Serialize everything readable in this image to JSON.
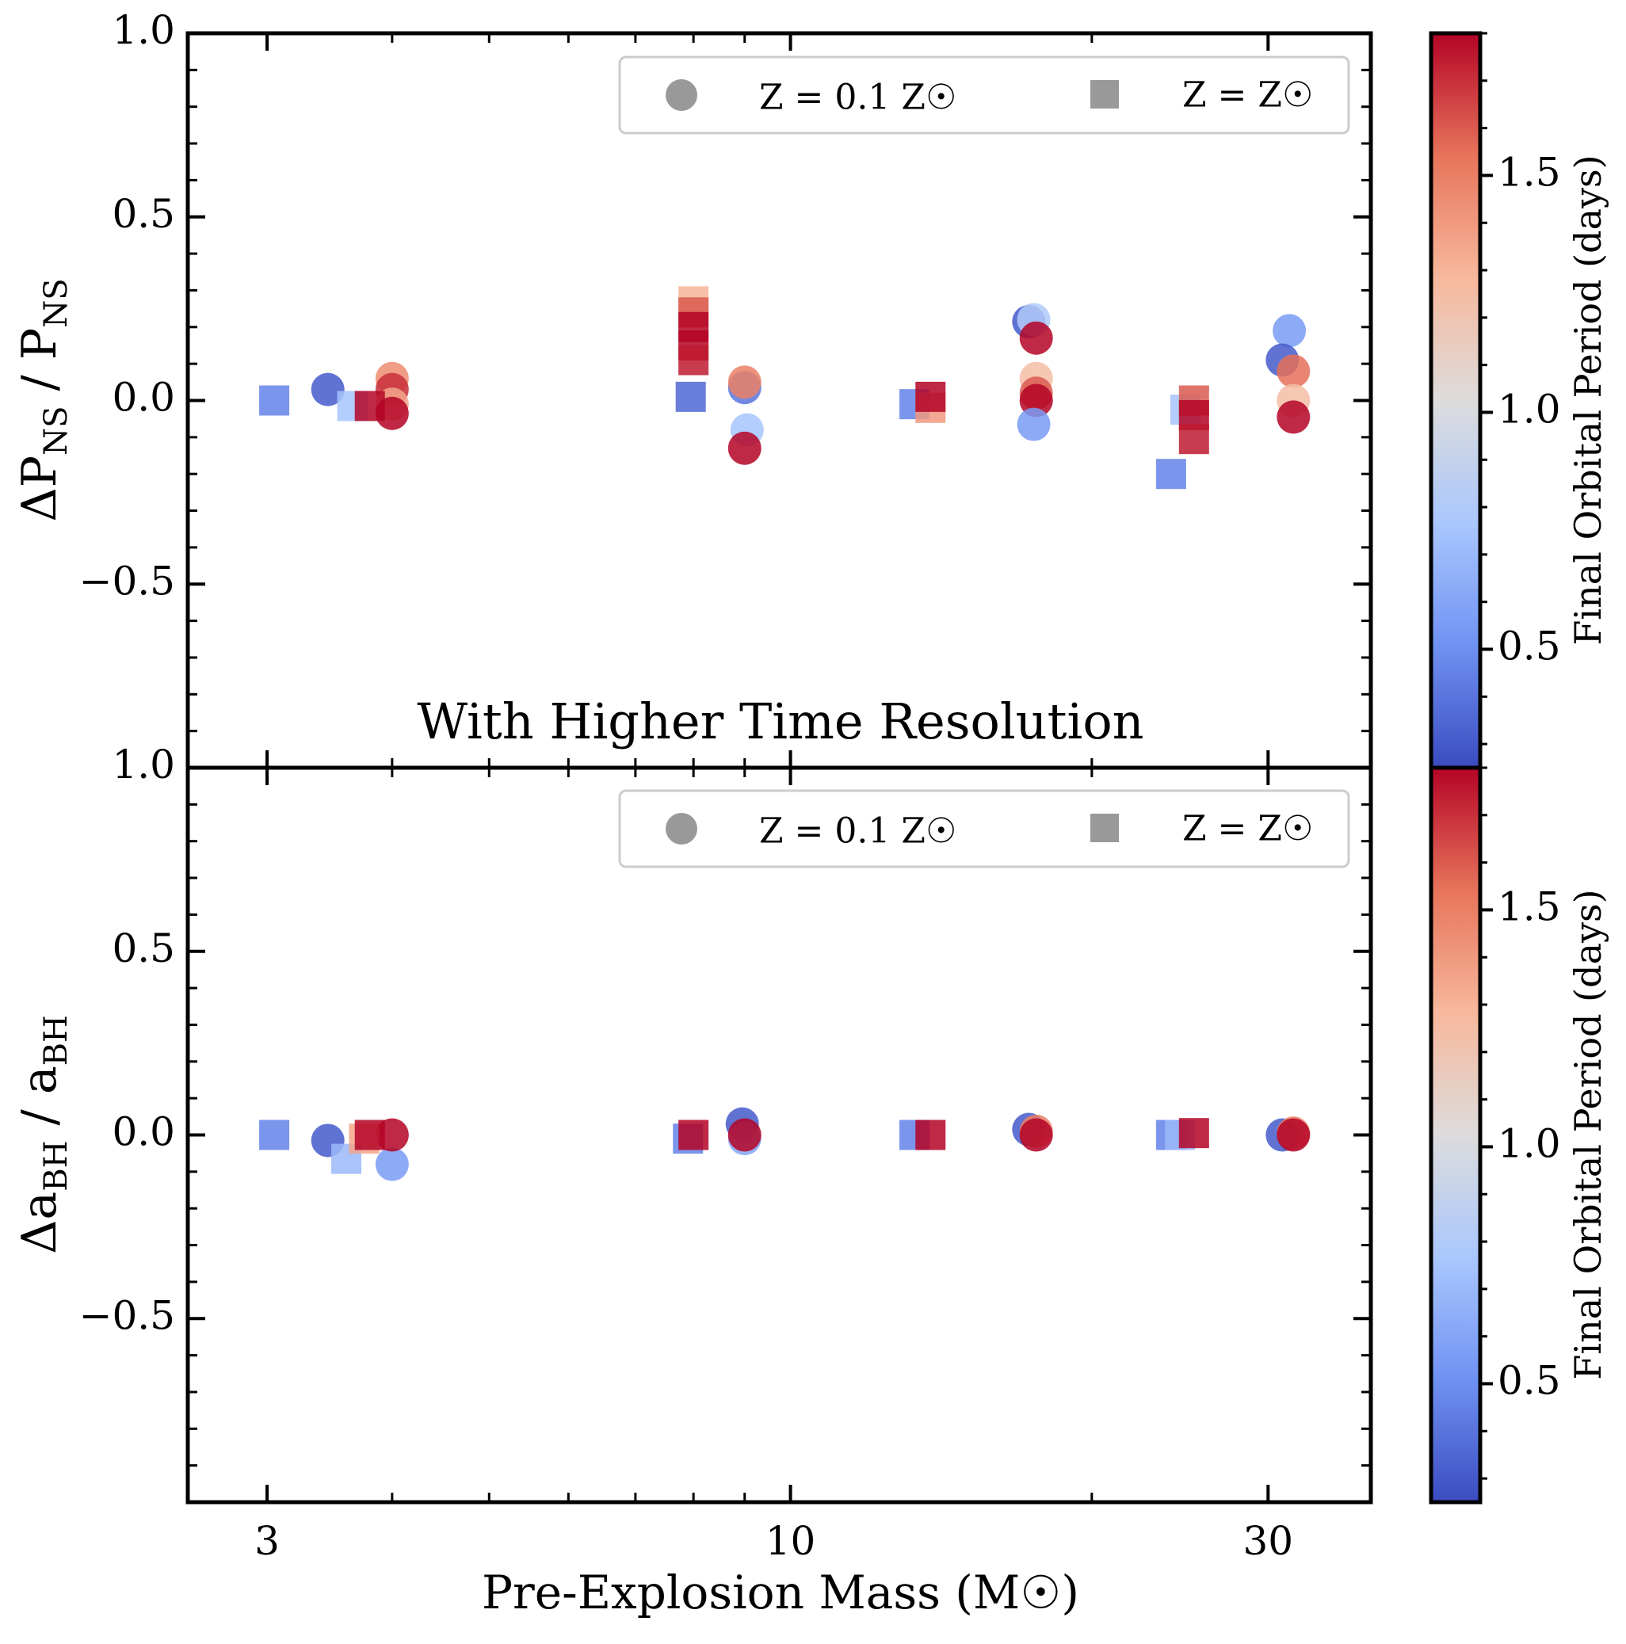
{
  "chart_data": [
    {
      "type": "scatter",
      "panel": "top",
      "ylabel_main": "ΔP",
      "ylabel_sub": "NS",
      "ylabel_sep": " / ",
      "ylabel_main2": "P",
      "ylabel_sub2": "NS",
      "ylim": [
        -1.0,
        1.0
      ],
      "yticks": [
        -0.5,
        0.0,
        0.5,
        1.0
      ],
      "ytick_labels": [
        "−0.5",
        "0.0",
        "0.5",
        "1.0"
      ],
      "annotation": "With Higher Time Resolution",
      "legend": {
        "circle": "Z = 0.1 Z☉",
        "square": "Z = Z☉"
      },
      "series": [
        {
          "name": "Z = 0.1 Z☉",
          "marker": "circle",
          "points": [
            {
              "x": 3.45,
              "y": 0.03,
              "c": 0.3
            },
            {
              "x": 4.0,
              "y": 0.06,
              "c": 1.45
            },
            {
              "x": 4.0,
              "y": 0.03,
              "c": 1.7
            },
            {
              "x": 4.0,
              "y": -0.01,
              "c": 1.35
            },
            {
              "x": 4.0,
              "y": -0.035,
              "c": 1.8
            },
            {
              "x": 9.0,
              "y": 0.035,
              "c": 0.4
            },
            {
              "x": 9.0,
              "y": 0.05,
              "c": 1.5
            },
            {
              "x": 9.05,
              "y": -0.08,
              "c": 0.75
            },
            {
              "x": 9.0,
              "y": -0.13,
              "c": 1.8
            },
            {
              "x": 17.3,
              "y": 0.215,
              "c": 0.3
            },
            {
              "x": 17.5,
              "y": 0.22,
              "c": 0.8
            },
            {
              "x": 17.6,
              "y": 0.17,
              "c": 1.8
            },
            {
              "x": 17.6,
              "y": 0.06,
              "c": 1.25
            },
            {
              "x": 17.6,
              "y": 0.02,
              "c": 1.6
            },
            {
              "x": 17.6,
              "y": 0.0,
              "c": 1.8
            },
            {
              "x": 17.5,
              "y": -0.065,
              "c": 0.55
            },
            {
              "x": 31.5,
              "y": 0.19,
              "c": 0.55
            },
            {
              "x": 31.0,
              "y": 0.11,
              "c": 0.3
            },
            {
              "x": 31.8,
              "y": 0.08,
              "c": 1.55
            },
            {
              "x": 31.8,
              "y": 0.0,
              "c": 1.25
            },
            {
              "x": 31.8,
              "y": -0.045,
              "c": 1.8
            }
          ]
        },
        {
          "name": "Z = Z☉",
          "marker": "square",
          "points": [
            {
              "x": 3.05,
              "y": 0.0,
              "c": 0.45
            },
            {
              "x": 3.65,
              "y": -0.015,
              "c": 0.75
            },
            {
              "x": 3.8,
              "y": -0.015,
              "c": 1.8
            },
            {
              "x": 8.0,
              "y": 0.27,
              "c": 1.3
            },
            {
              "x": 8.0,
              "y": 0.24,
              "c": 1.6
            },
            {
              "x": 8.0,
              "y": 0.2,
              "c": 1.8
            },
            {
              "x": 8.0,
              "y": 0.15,
              "c": 1.8
            },
            {
              "x": 8.0,
              "y": 0.11,
              "c": 1.75
            },
            {
              "x": 7.95,
              "y": 0.01,
              "c": 0.35
            },
            {
              "x": 13.3,
              "y": -0.01,
              "c": 0.45
            },
            {
              "x": 13.8,
              "y": -0.02,
              "c": 1.4
            },
            {
              "x": 13.8,
              "y": 0.01,
              "c": 1.8
            },
            {
              "x": 24.8,
              "y": -0.025,
              "c": 0.75
            },
            {
              "x": 25.3,
              "y": 0.0,
              "c": 1.6
            },
            {
              "x": 25.3,
              "y": -0.04,
              "c": 1.8
            },
            {
              "x": 25.3,
              "y": -0.105,
              "c": 1.75
            },
            {
              "x": 24.0,
              "y": -0.2,
              "c": 0.45
            }
          ]
        }
      ]
    },
    {
      "type": "scatter",
      "panel": "bottom",
      "ylabel_main": "Δa",
      "ylabel_sub": "BH",
      "ylabel_sep": " / ",
      "ylabel_main2": "a",
      "ylabel_sub2": "BH",
      "ylim": [
        -1.0,
        1.0
      ],
      "yticks": [
        -0.5,
        0.0,
        0.5,
        1.0
      ],
      "ytick_labels": [
        "−0.5",
        "0.0",
        "0.5",
        "1.0"
      ],
      "xlabel": "Pre-Explosion Mass (M☉)",
      "xscale": "log",
      "xlim": [
        2.5,
        38
      ],
      "xticks": [
        3,
        10,
        30
      ],
      "xtick_labels": [
        "3",
        "10",
        "30"
      ],
      "legend": {
        "circle": "Z = 0.1 Z☉",
        "square": "Z = Z☉"
      },
      "series": [
        {
          "name": "Z = 0.1 Z☉",
          "marker": "circle",
          "points": [
            {
              "x": 3.45,
              "y": -0.015,
              "c": 0.3
            },
            {
              "x": 4.0,
              "y": -0.08,
              "c": 0.55
            },
            {
              "x": 4.0,
              "y": 0.0,
              "c": 1.8
            },
            {
              "x": 8.95,
              "y": 0.03,
              "c": 0.3
            },
            {
              "x": 9.0,
              "y": -0.01,
              "c": 0.6
            },
            {
              "x": 9.0,
              "y": 0.0,
              "c": 1.8
            },
            {
              "x": 17.3,
              "y": 0.015,
              "c": 0.3
            },
            {
              "x": 17.6,
              "y": 0.01,
              "c": 1.5
            },
            {
              "x": 17.6,
              "y": 0.0,
              "c": 1.8
            },
            {
              "x": 31.0,
              "y": 0.0,
              "c": 0.3
            },
            {
              "x": 31.8,
              "y": 0.005,
              "c": 1.5
            },
            {
              "x": 31.8,
              "y": 0.0,
              "c": 1.8
            }
          ]
        },
        {
          "name": "Z = Z☉",
          "marker": "square",
          "points": [
            {
              "x": 3.05,
              "y": 0.0,
              "c": 0.45
            },
            {
              "x": 3.6,
              "y": -0.065,
              "c": 0.7
            },
            {
              "x": 3.75,
              "y": -0.01,
              "c": 1.35
            },
            {
              "x": 3.8,
              "y": 0.0,
              "c": 1.8
            },
            {
              "x": 7.9,
              "y": -0.01,
              "c": 0.45
            },
            {
              "x": 8.0,
              "y": 0.0,
              "c": 1.8
            },
            {
              "x": 13.3,
              "y": 0.0,
              "c": 0.45
            },
            {
              "x": 13.8,
              "y": 0.0,
              "c": 1.8
            },
            {
              "x": 24.0,
              "y": 0.0,
              "c": 0.45
            },
            {
              "x": 24.5,
              "y": 0.0,
              "c": 0.7
            },
            {
              "x": 25.3,
              "y": 0.005,
              "c": 1.8
            }
          ]
        }
      ]
    }
  ],
  "colorbar": {
    "label": "Final Orbital Period (days)",
    "cmap": "coolwarm",
    "clim": [
      0.25,
      1.8
    ],
    "ticks": [
      0.5,
      1.0,
      1.5
    ],
    "tick_labels": [
      "0.5",
      "1.0",
      "1.5"
    ],
    "colors": [
      "#3b4cc0",
      "#6f92f3",
      "#aac7fd",
      "#dddcdc",
      "#f7b89c",
      "#e7745b",
      "#b40426"
    ]
  },
  "legend_colors": {
    "marker_gray": "#999999"
  }
}
